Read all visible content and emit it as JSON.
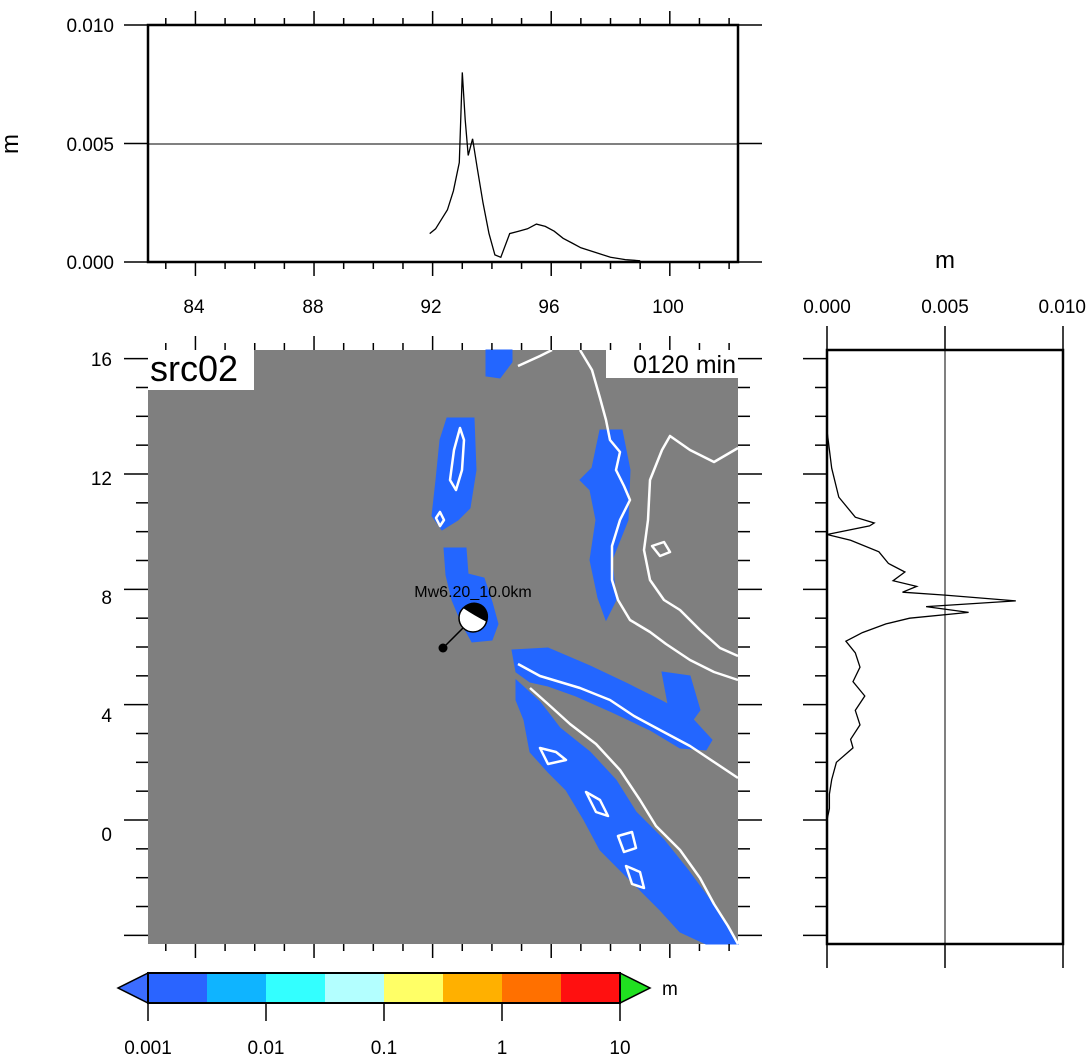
{
  "map": {
    "source_label": "src02",
    "time_label": "0120 min",
    "event_label": "Mw6.20_10.0km",
    "lon_ticks": [
      "84",
      "88",
      "92",
      "96",
      "100"
    ],
    "lat_ticks": [
      "16",
      "12",
      "8",
      "4",
      "0"
    ],
    "ocean_color": "#7f7f7f",
    "wave_color": "#2366ff",
    "coast_color": "#ffffff",
    "beachball_icon": "focal-mechanism-beachball"
  },
  "top_profile": {
    "unit": "m",
    "y_ticks": [
      "0.010",
      "0.005",
      "0.000"
    ]
  },
  "right_profile": {
    "unit": "m",
    "x_ticks": [
      "0.000",
      "0.005",
      "0.010"
    ]
  },
  "colorbar": {
    "unit": "m",
    "ticks": [
      "0.001",
      "0.01",
      "0.1",
      "1",
      "10"
    ],
    "colors": [
      "#2a64ff",
      "#0fb4ff",
      "#33ffff",
      "#b3ffff",
      "#ffff66",
      "#ffb000",
      "#ff7000",
      "#ff1010"
    ],
    "under_color": "#3b6cff",
    "over_color": "#20e020"
  },
  "chart_data": [
    {
      "type": "line",
      "title": "",
      "xlabel": "",
      "ylabel": "m",
      "xlim": [
        82.4,
        102.3
      ],
      "ylim": [
        0,
        0.01
      ],
      "x_ticks": [
        84,
        88,
        92,
        96,
        100
      ],
      "y_ticks": [
        0,
        0.005,
        0.01
      ],
      "grid": "horizontal line at 0.005",
      "x": [
        91.9,
        92.1,
        92.3,
        92.5,
        92.7,
        92.9,
        93.0,
        93.1,
        93.2,
        93.35,
        93.5,
        93.7,
        93.9,
        94.1,
        94.3,
        94.6,
        94.9,
        95.2,
        95.5,
        95.8,
        96.1,
        96.4,
        96.7,
        97.0,
        97.5,
        98.0,
        98.5,
        99.0
      ],
      "y": [
        0.0012,
        0.0014,
        0.0018,
        0.0022,
        0.003,
        0.0042,
        0.008,
        0.006,
        0.0045,
        0.0052,
        0.004,
        0.0025,
        0.0012,
        0.0003,
        0.0002,
        0.0012,
        0.0013,
        0.0014,
        0.0016,
        0.0015,
        0.0013,
        0.001,
        0.0008,
        0.0006,
        0.0004,
        0.0002,
        0.0001,
        5e-05
      ]
    },
    {
      "type": "line",
      "title": "",
      "xlabel": "m",
      "ylabel": "",
      "xlim": [
        0,
        0.01
      ],
      "ylim": [
        -4.3,
        16.3
      ],
      "x_ticks": [
        0,
        0.005,
        0.01
      ],
      "y_ticks": [
        0,
        4,
        8,
        12,
        16
      ],
      "grid": "vertical line at 0.005",
      "lat": [
        13.5,
        12.2,
        11.2,
        10.5,
        10.3,
        10.2,
        9.9,
        9.7,
        9.3,
        8.9,
        8.6,
        8.3,
        8.1,
        7.9,
        7.8,
        7.6,
        7.4,
        7.2,
        7.0,
        6.8,
        6.5,
        6.2,
        5.8,
        5.3,
        4.8,
        4.3,
        3.8,
        3.3,
        2.8,
        2.5,
        2.0,
        1.4,
        0.9,
        0.4,
        0.0
      ],
      "value": [
        0.0,
        0.0002,
        0.0005,
        0.0012,
        0.002,
        0.0018,
        0.0,
        0.001,
        0.0022,
        0.0026,
        0.0033,
        0.0028,
        0.0038,
        0.0032,
        0.005,
        0.008,
        0.0042,
        0.006,
        0.0035,
        0.0025,
        0.0015,
        0.0008,
        0.0012,
        0.0014,
        0.0011,
        0.0016,
        0.0012,
        0.0014,
        0.001,
        0.0011,
        0.0004,
        0.0002,
        0.0001,
        0.0001,
        0.0
      ]
    }
  ]
}
